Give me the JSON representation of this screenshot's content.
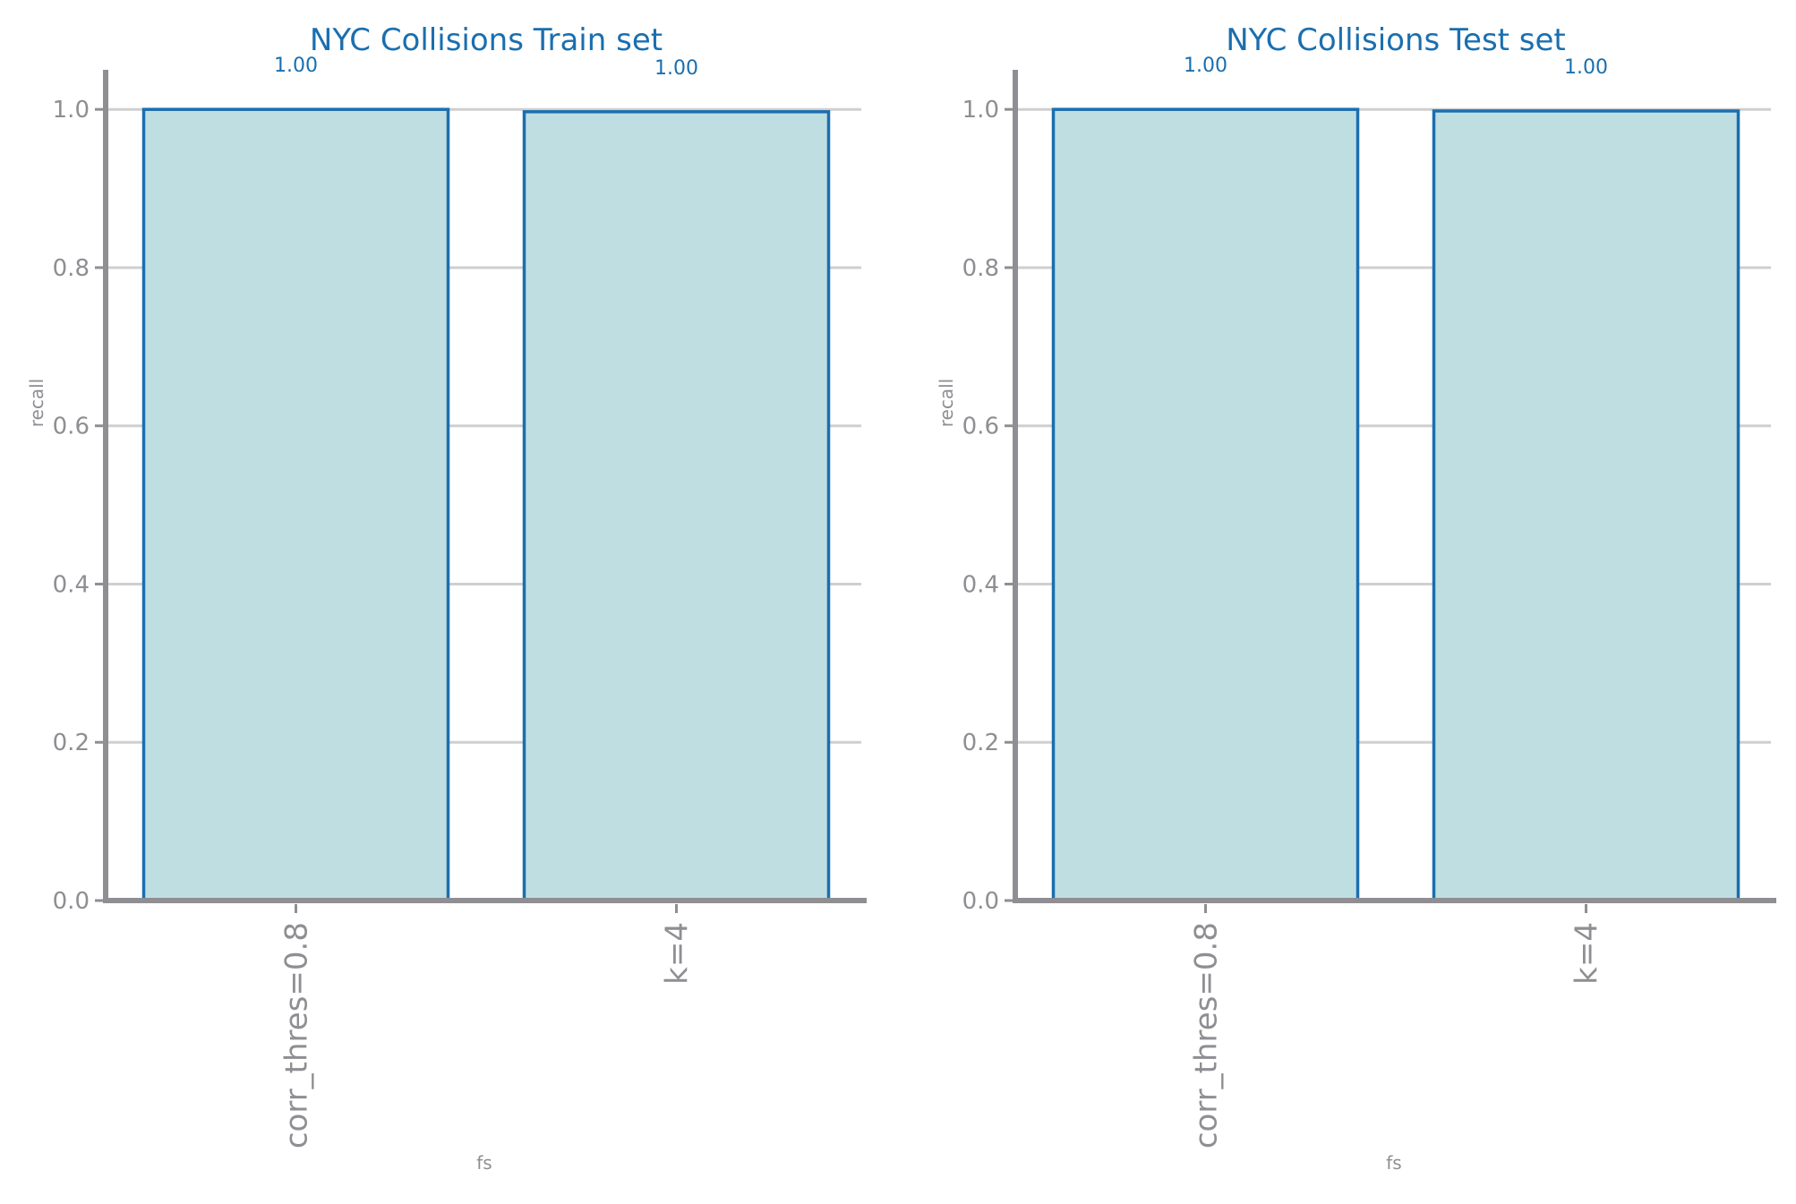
{
  "chart_data": [
    {
      "type": "bar",
      "title": "NYC Collisions Train set",
      "xlabel": "fs",
      "ylabel": "recall",
      "categories": [
        "corr_thres=0.8",
        "k=4"
      ],
      "values": [
        1.0,
        0.997
      ],
      "value_labels": [
        "1.00",
        "1.00"
      ],
      "ylim": [
        0,
        1.05
      ],
      "yticks": [
        0.0,
        0.2,
        0.4,
        0.6,
        0.8,
        1.0
      ],
      "ytick_labels": [
        "0.0",
        "0.2",
        "0.4",
        "0.6",
        "0.8",
        "1.0"
      ],
      "grid": true,
      "grid_axis": "y"
    },
    {
      "type": "bar",
      "title": "NYC Collisions Test set",
      "xlabel": "fs",
      "ylabel": "recall",
      "categories": [
        "corr_thres=0.8",
        "k=4"
      ],
      "values": [
        1.0,
        0.998
      ],
      "value_labels": [
        "1.00",
        "1.00"
      ],
      "ylim": [
        0,
        1.05
      ],
      "yticks": [
        0.0,
        0.2,
        0.4,
        0.6,
        0.8,
        1.0
      ],
      "ytick_labels": [
        "0.0",
        "0.2",
        "0.4",
        "0.6",
        "0.8",
        "1.0"
      ],
      "grid": true,
      "grid_axis": "y"
    }
  ],
  "colors": {
    "bar_fill": "#bfdee2",
    "bar_edge": "#1a6faf",
    "axis": "#8e8e93",
    "grid": "#cfcfcf",
    "title": "#1a6faf",
    "tick_text": "#8e8e93"
  }
}
